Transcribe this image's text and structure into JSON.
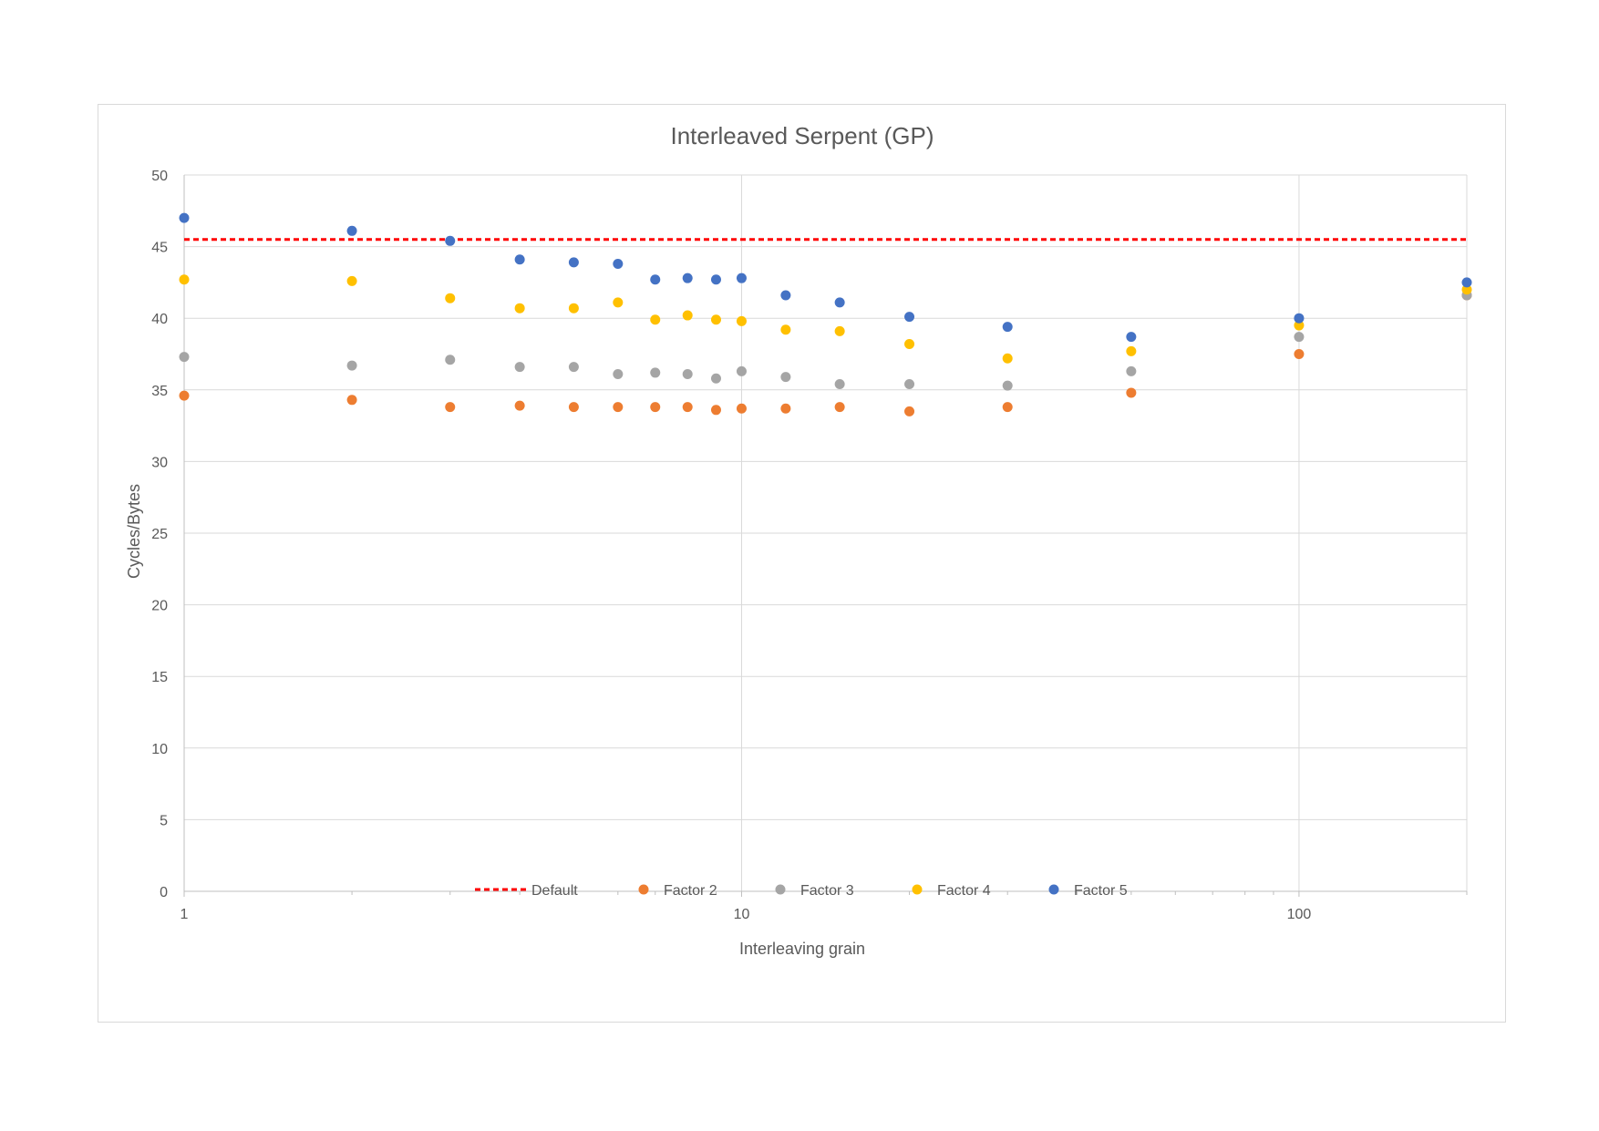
{
  "chart_data": {
    "type": "scatter",
    "title": "Interleaved Serpent (GP)",
    "xlabel": "Interleaving grain",
    "ylabel": "Cycles/Bytes",
    "x_scale": "log",
    "xlim": [
      1,
      200
    ],
    "ylim": [
      0,
      50
    ],
    "x_ticks": [
      1,
      10,
      100
    ],
    "y_ticks": [
      0,
      5,
      10,
      15,
      20,
      25,
      30,
      35,
      40,
      45,
      50
    ],
    "grid": true,
    "legend_position": "bottom",
    "reference_line": {
      "name": "Default",
      "y": 45.5,
      "color": "#ff0000",
      "style": "dashed"
    },
    "x": [
      1,
      2,
      3,
      4,
      5,
      6,
      7,
      8,
      9,
      10,
      12,
      15,
      20,
      30,
      50,
      100,
      200
    ],
    "series": [
      {
        "name": "Factor 2",
        "color": "#ed7d31",
        "values": [
          34.6,
          34.3,
          33.8,
          33.9,
          33.8,
          33.8,
          33.8,
          33.8,
          33.6,
          33.7,
          33.7,
          33.8,
          33.5,
          33.8,
          34.8,
          37.5,
          41.6
        ]
      },
      {
        "name": "Factor 3",
        "color": "#a5a5a5",
        "values": [
          37.3,
          36.7,
          37.1,
          36.6,
          36.6,
          36.1,
          36.2,
          36.1,
          35.8,
          36.3,
          35.9,
          35.4,
          35.4,
          35.3,
          36.3,
          38.7,
          41.6
        ]
      },
      {
        "name": "Factor 4",
        "color": "#ffc000",
        "values": [
          42.7,
          42.6,
          41.4,
          40.7,
          40.7,
          41.1,
          39.9,
          40.2,
          39.9,
          39.8,
          39.2,
          39.1,
          38.2,
          37.2,
          37.7,
          39.5,
          42.0
        ]
      },
      {
        "name": "Factor 5",
        "color": "#4472c4",
        "values": [
          47.0,
          46.1,
          45.4,
          44.1,
          43.9,
          43.8,
          42.7,
          42.8,
          42.7,
          42.8,
          41.6,
          41.1,
          40.1,
          39.4,
          38.7,
          40.0,
          42.5
        ]
      }
    ]
  }
}
